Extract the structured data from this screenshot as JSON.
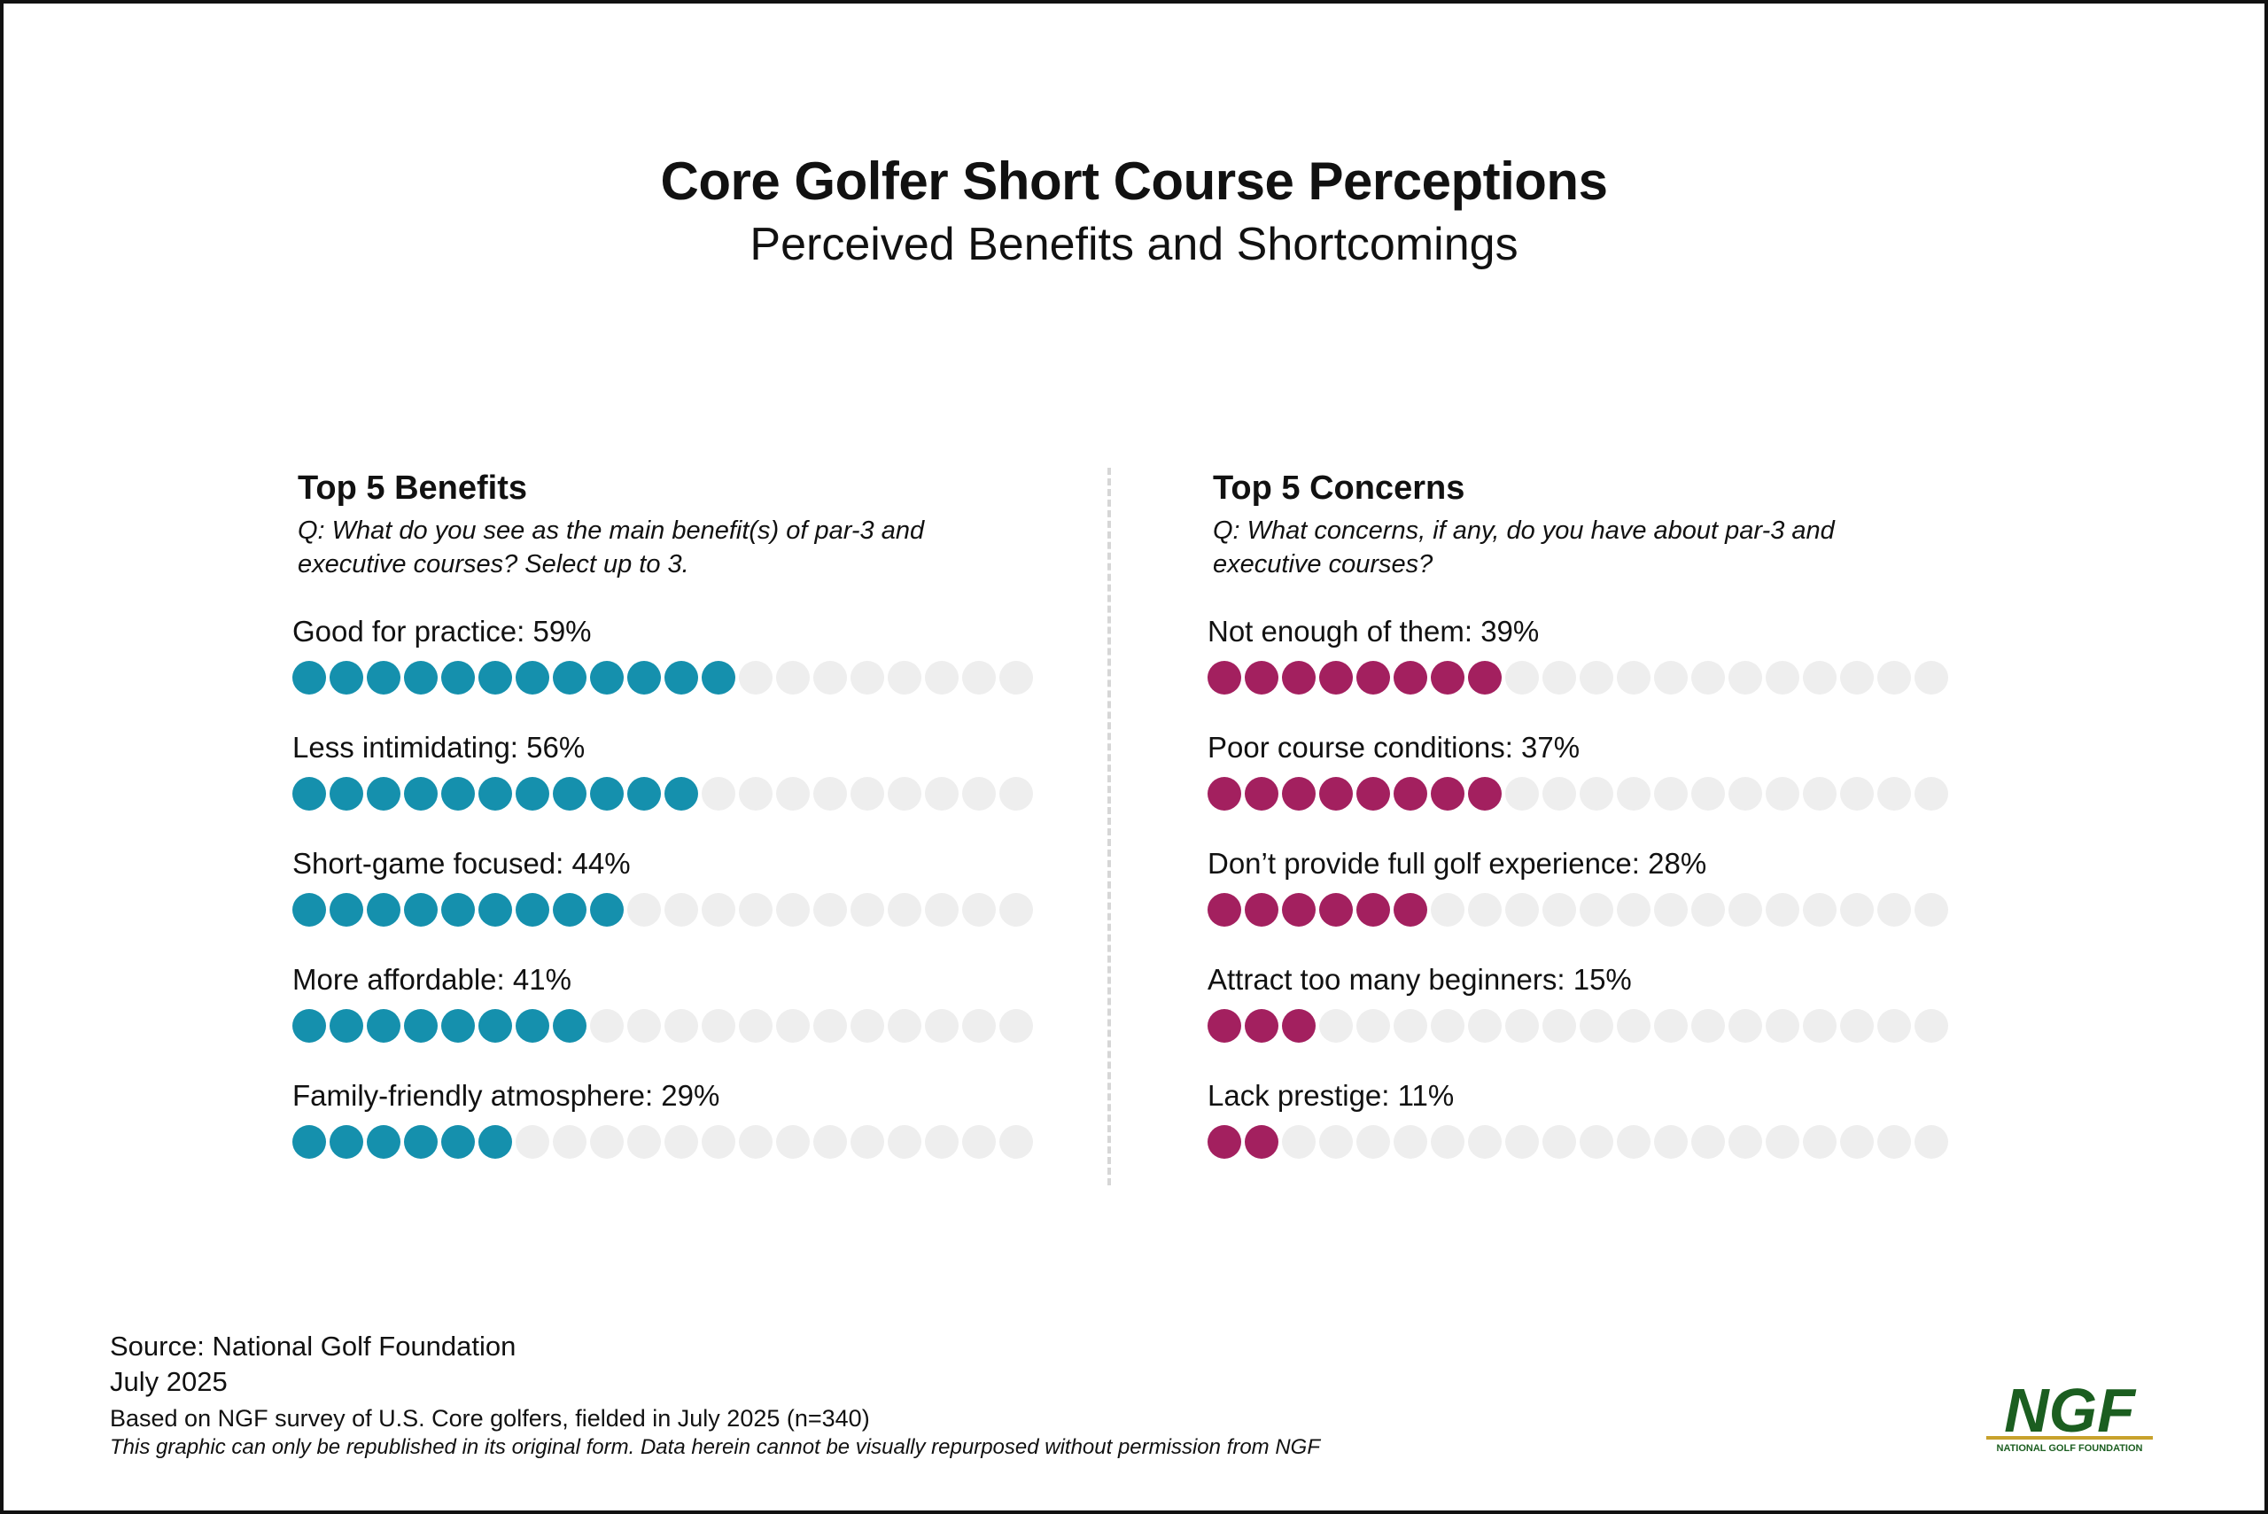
{
  "title": "Core Golfer Short Course Perceptions",
  "subtitle": "Perceived Benefits and Shortcomings",
  "colors": {
    "benefits": "#1590ad",
    "concerns": "#a3205f",
    "empty_dot": "#eeeeee",
    "logo_green": "#1b5e20",
    "logo_gold": "#c8a22c"
  },
  "dots_per_row": 20,
  "chart_data": [
    {
      "type": "dot-bar",
      "title": "Top 5 Benefits",
      "question": "Q: What do you see as the main benefit(s) of par-3 and executive courses? Select up to 3.",
      "unit": "%",
      "categories": [
        "Good for practice",
        "Less intimidating",
        "Short-game focused",
        "More affordable",
        "Family-friendly atmosphere"
      ],
      "values": [
        59,
        56,
        44,
        41,
        29
      ],
      "filled_dots": [
        12,
        11,
        9,
        8,
        6
      ],
      "labels": [
        "Good for practice: 59%",
        "Less intimidating: 56%",
        "Short-game focused: 44%",
        "More affordable: 41%",
        "Family-friendly atmosphere: 29%"
      ]
    },
    {
      "type": "dot-bar",
      "title": "Top 5 Concerns",
      "question": "Q: What concerns, if any, do you have about par-3 and executive courses?",
      "unit": "%",
      "categories": [
        "Not enough of them",
        "Poor course conditions",
        "Don’t provide full golf experience",
        "Attract too many beginners",
        "Lack prestige"
      ],
      "values": [
        39,
        37,
        28,
        15,
        11
      ],
      "filled_dots": [
        8,
        8,
        6,
        3,
        2
      ],
      "labels": [
        "Not enough of them: 39%",
        "Poor course conditions: 37%",
        "Don’t provide full golf experience: 28%",
        "Attract too many beginners: 15%",
        "Lack prestige: 11%"
      ]
    }
  ],
  "footer": {
    "source": "Source: National Golf Foundation",
    "date": "July 2025",
    "note": "Based on NGF survey of U.S. Core golfers, fielded in July 2025 (n=340)",
    "disclaimer": "This graphic can only be republished in its original form. Data herein cannot be visually repurposed without permission from NGF"
  },
  "logo": {
    "text": "NGF",
    "tagline": "NATIONAL GOLF FOUNDATION"
  }
}
